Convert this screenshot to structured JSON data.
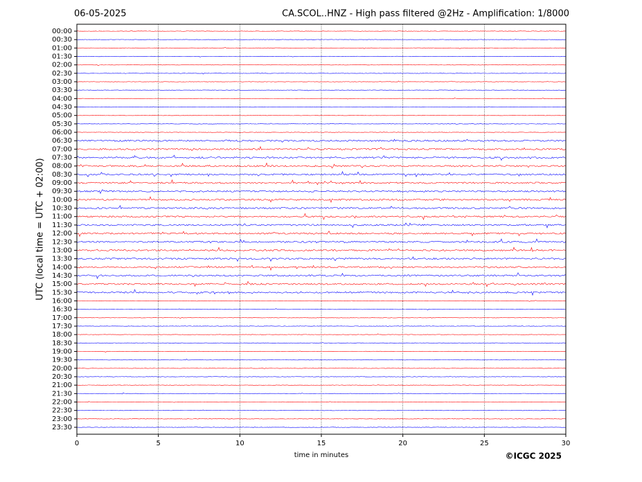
{
  "chart_data": {
    "type": "helicorder",
    "title": "CA.SCOL..HNZ - High pass filtered @2Hz - Amplification: 1/8000",
    "date": "06-05-2025",
    "ylabel": "UTC (local time = UTC + 02:00)",
    "xlabel": "time in minutes",
    "credit": "©ICGC 2025",
    "categories": [
      "00:00",
      "00:30",
      "01:00",
      "01:30",
      "02:00",
      "02:30",
      "03:00",
      "03:30",
      "04:00",
      "04:30",
      "05:00",
      "05:30",
      "06:00",
      "06:30",
      "07:00",
      "07:30",
      "08:00",
      "08:30",
      "09:00",
      "09:30",
      "10:00",
      "10:30",
      "11:00",
      "11:30",
      "12:00",
      "12:30",
      "13:00",
      "13:30",
      "14:00",
      "14:30",
      "15:00",
      "15:30",
      "16:00",
      "16:30",
      "17:00",
      "17:30",
      "18:00",
      "18:30",
      "19:00",
      "19:30",
      "20:00",
      "20:30",
      "21:00",
      "21:30",
      "22:00",
      "22:30",
      "23:00",
      "23:30"
    ],
    "colors": [
      "#ff0000",
      "#0000ff"
    ],
    "xlim": [
      0,
      30
    ],
    "xticks": [
      0,
      5,
      10,
      15,
      20,
      25,
      30
    ],
    "grid": true
  }
}
